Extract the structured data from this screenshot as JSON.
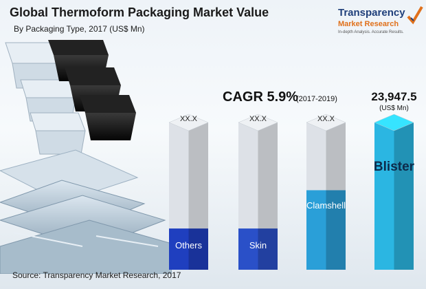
{
  "header": {
    "title": "Global Thermoform Packaging Market Value",
    "subtitle": "By Packaging Type, 2017 (US$ Mn)"
  },
  "logo": {
    "name_line1": "Transparency",
    "name_line2": "Market Research",
    "tagline": "In-depth Analysis. Accurate Results."
  },
  "cagr": {
    "label": "CAGR 5.9%",
    "period": "(2017-2019)"
  },
  "source": "Source: Transparency Market Research, 2017",
  "colors": {
    "others": "#1f3fbf",
    "skin": "#2a50c8",
    "clamshell": "#2a9fd8",
    "blister": "#2bb6e2",
    "grey_top": "#d9dde2"
  },
  "chart_data": {
    "type": "bar",
    "title": "Global Thermoform Packaging Market Value",
    "subtitle": "By Packaging Type, 2017 (US$ Mn)",
    "categories": [
      "Others",
      "Skin",
      "Clamshell",
      "Blister"
    ],
    "value_labels": [
      "XX.X",
      "XX.X",
      "XX.X",
      "23,947.5"
    ],
    "shown_values": [
      null,
      null,
      null,
      23947.5
    ],
    "fill_fraction": [
      0.28,
      0.28,
      0.54,
      1.0
    ],
    "unit_label": "(US$ Mn)"
  }
}
